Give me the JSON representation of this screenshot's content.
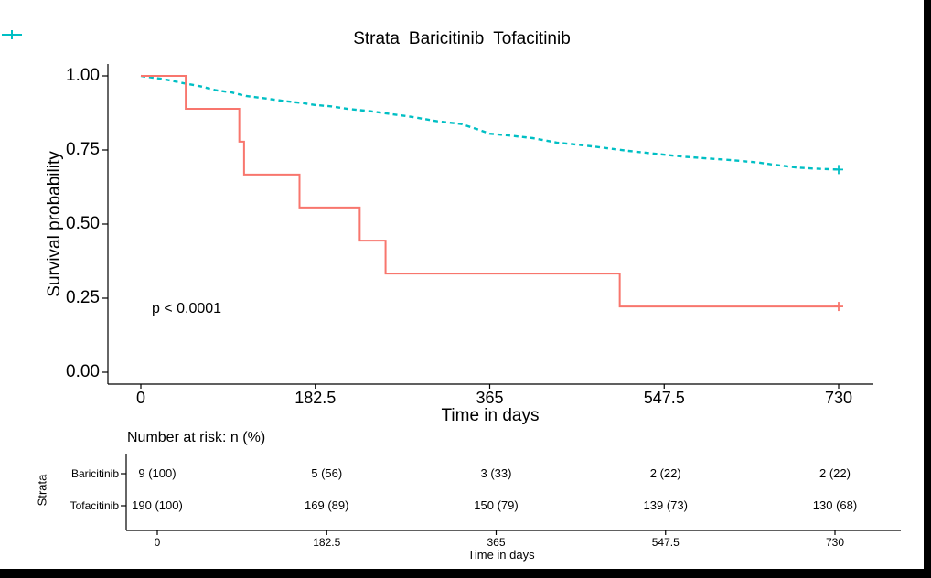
{
  "legend": {
    "title": "Strata",
    "items": [
      {
        "label": "Baricitinib",
        "color": "#F8766D"
      },
      {
        "label": "Tofacitinib",
        "color": "#00BFC4"
      }
    ]
  },
  "annotation": {
    "p_value": "p < 0.0001"
  },
  "chart_data": {
    "type": "line",
    "subtype": "kaplan-meier-survival",
    "title": "",
    "xlabel": "Time in days",
    "ylabel": "Survival probability",
    "xlim": [
      0,
      730
    ],
    "ylim": [
      0,
      1
    ],
    "grid": false,
    "legend_position": "top",
    "x_ticks": [
      {
        "value": 0,
        "label": "0"
      },
      {
        "value": 182.5,
        "label": "182.5"
      },
      {
        "value": 365,
        "label": "365"
      },
      {
        "value": 547.5,
        "label": "547.5"
      },
      {
        "value": 730,
        "label": "730"
      }
    ],
    "y_ticks": [
      {
        "value": 1.0,
        "label": "1.00"
      },
      {
        "value": 0.75,
        "label": "0.75"
      },
      {
        "value": 0.5,
        "label": "0.50"
      },
      {
        "value": 0.25,
        "label": "0.25"
      },
      {
        "value": 0.0,
        "label": "0.00"
      }
    ],
    "series": [
      {
        "name": "Tofacitinib",
        "color": "#00BFC4",
        "line_style": "dashed",
        "interpolation": "linear",
        "points": [
          [
            0,
            1.0
          ],
          [
            10,
            0.995
          ],
          [
            22,
            0.99
          ],
          [
            45,
            0.975
          ],
          [
            62,
            0.965
          ],
          [
            78,
            0.952
          ],
          [
            95,
            0.944
          ],
          [
            110,
            0.932
          ],
          [
            130,
            0.924
          ],
          [
            150,
            0.915
          ],
          [
            170,
            0.908
          ],
          [
            182,
            0.902
          ],
          [
            200,
            0.897
          ],
          [
            218,
            0.888
          ],
          [
            240,
            0.881
          ],
          [
            262,
            0.871
          ],
          [
            285,
            0.861
          ],
          [
            310,
            0.847
          ],
          [
            335,
            0.838
          ],
          [
            352,
            0.82
          ],
          [
            365,
            0.805
          ],
          [
            385,
            0.799
          ],
          [
            410,
            0.79
          ],
          [
            435,
            0.775
          ],
          [
            460,
            0.767
          ],
          [
            485,
            0.757
          ],
          [
            510,
            0.747
          ],
          [
            530,
            0.74
          ],
          [
            548,
            0.734
          ],
          [
            570,
            0.727
          ],
          [
            595,
            0.721
          ],
          [
            620,
            0.715
          ],
          [
            645,
            0.708
          ],
          [
            665,
            0.699
          ],
          [
            685,
            0.691
          ],
          [
            705,
            0.687
          ],
          [
            730,
            0.684
          ]
        ]
      },
      {
        "name": "Baricitinib",
        "color": "#F8766D",
        "line_style": "solid",
        "interpolation": "step-after",
        "points": [
          [
            0,
            1.0
          ],
          [
            47,
            0.889
          ],
          [
            103,
            0.778
          ],
          [
            108,
            0.667
          ],
          [
            166,
            0.556
          ],
          [
            229,
            0.444
          ],
          [
            256,
            0.333
          ],
          [
            501,
            0.222
          ],
          [
            730,
            0.222
          ]
        ]
      }
    ],
    "censor_marks": [
      {
        "series": "Tofacitinib",
        "x": 730,
        "y": 0.684
      },
      {
        "series": "Baricitinib",
        "x": 730,
        "y": 0.222
      }
    ],
    "annotations": [
      {
        "text": "p < 0.0001",
        "x": 30,
        "y": 0.28
      }
    ]
  },
  "risk_table": {
    "title": "Number at risk: n (%)",
    "axis_label": "Strata",
    "xlabel": "Time in days",
    "x_ticks": [
      "0",
      "182.5",
      "365",
      "547.5",
      "730"
    ],
    "rows": [
      {
        "label": "Baricitinib",
        "values": [
          "9 (100)",
          "5 (56)",
          "3 (33)",
          "2 (22)",
          "2 (22)"
        ]
      },
      {
        "label": "Tofacitinib",
        "values": [
          "190 (100)",
          "169 (89)",
          "150 (79)",
          "139 (73)",
          "130 (68)"
        ]
      }
    ]
  }
}
